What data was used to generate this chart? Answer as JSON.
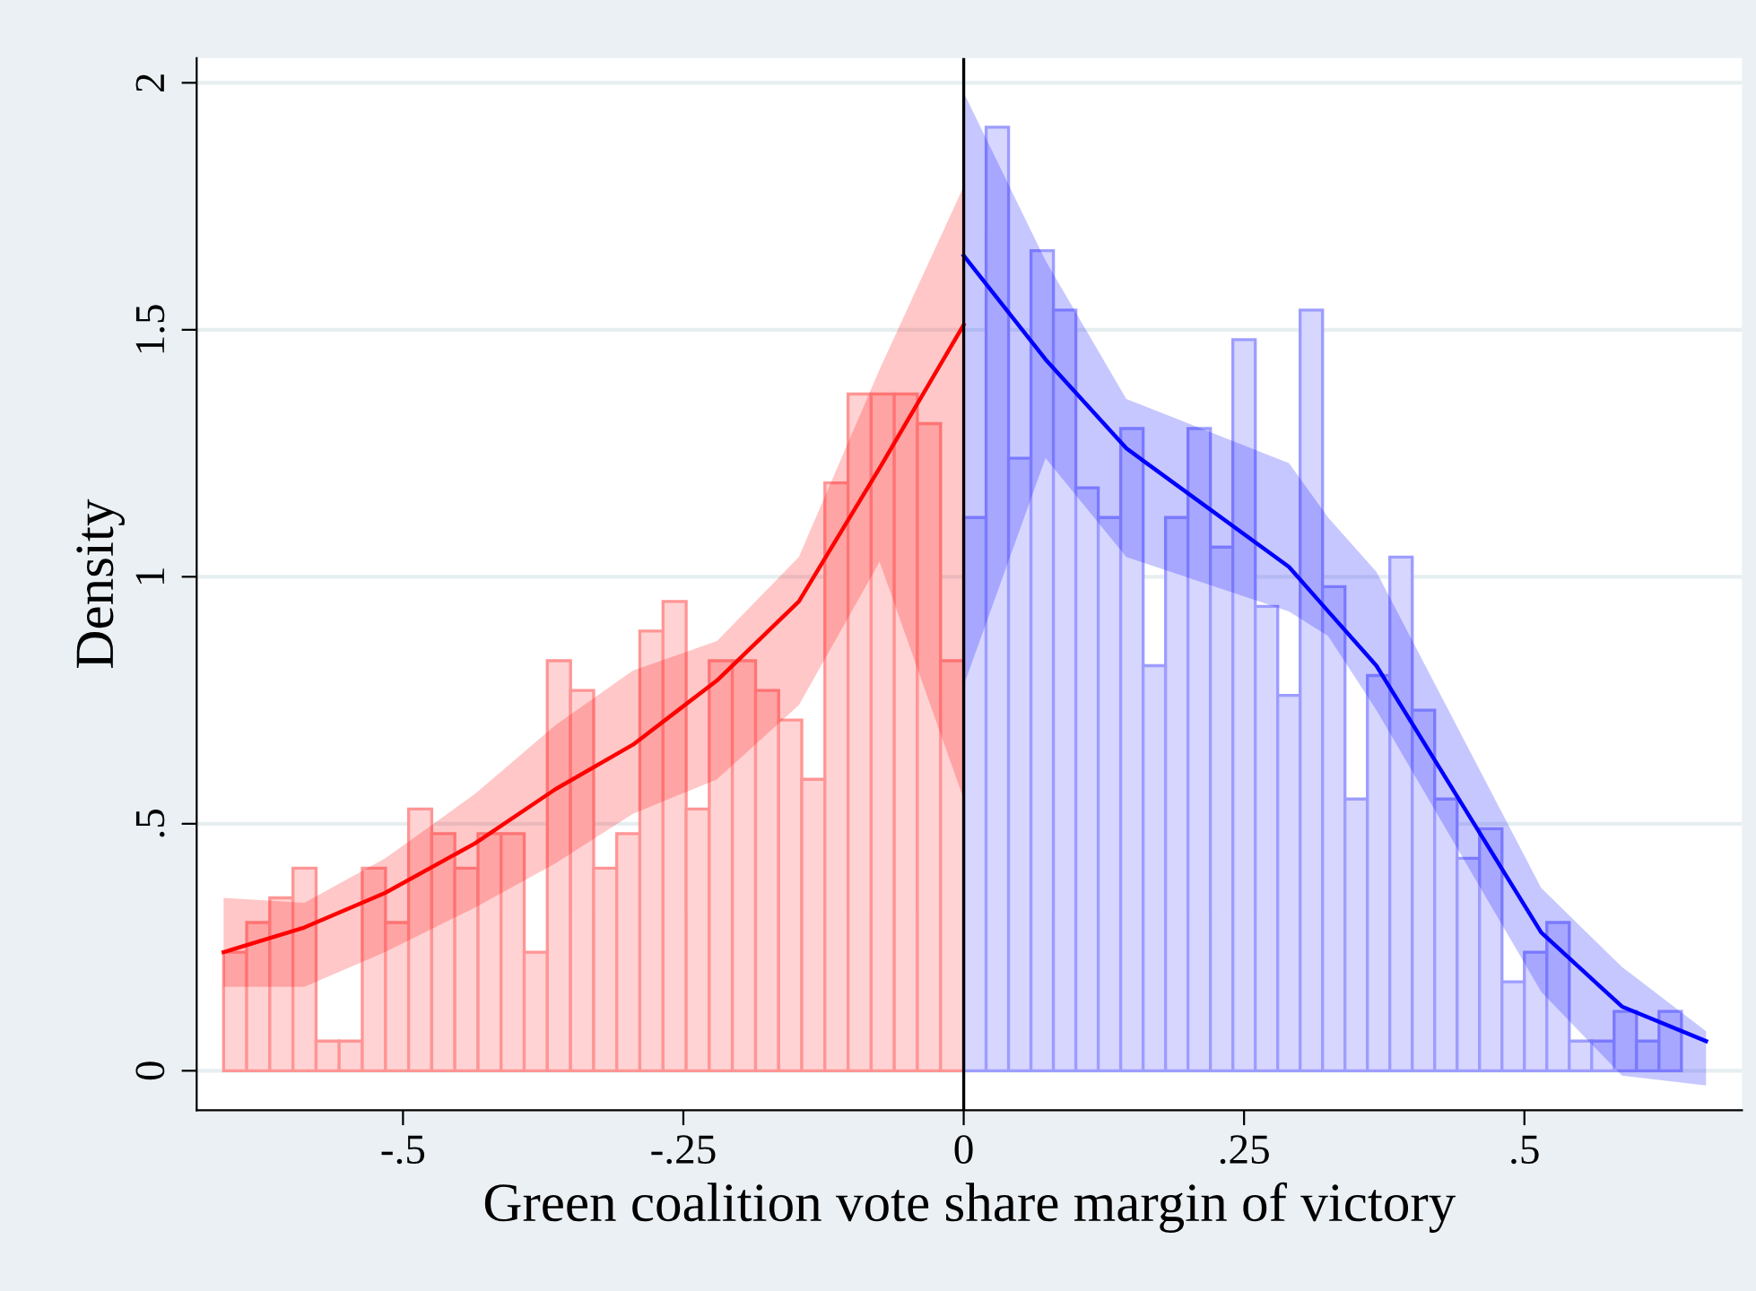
{
  "chart_data": {
    "type": "histogram",
    "xlabel": "Green coalition vote share margin of victory",
    "ylabel": "Density",
    "xlim": [
      -0.684,
      0.694
    ],
    "ylim": [
      -0.08,
      2.05
    ],
    "xticks": [
      {
        "value": -0.5,
        "label": "-.5"
      },
      {
        "value": -0.25,
        "label": "-.25"
      },
      {
        "value": 0,
        "label": "0"
      },
      {
        "value": 0.25,
        "label": ".25"
      },
      {
        "value": 0.5,
        "label": ".5"
      }
    ],
    "yticks": [
      {
        "value": 0,
        "label": "0"
      },
      {
        "value": 0.5,
        "label": ".5"
      },
      {
        "value": 1,
        "label": "1"
      },
      {
        "value": 1.5,
        "label": "1.5"
      },
      {
        "value": 2,
        "label": "2"
      }
    ],
    "grid": "y",
    "ref_lines": [
      {
        "axis": "x",
        "value": 0,
        "color": "#000000"
      }
    ],
    "series": [
      {
        "type": "histogram",
        "color": "#ffd3d3",
        "bins": [
          -0.66,
          -0.6394,
          -0.6188,
          -0.5981,
          -0.5775,
          -0.5569,
          -0.5363,
          -0.5156,
          -0.495,
          -0.4744,
          -0.4538,
          -0.4331,
          -0.4125,
          -0.3919,
          -0.3713,
          -0.3506,
          -0.33,
          -0.3094,
          -0.2888,
          -0.2681,
          -0.2475,
          -0.2269,
          -0.2063,
          -0.1856,
          -0.165,
          -0.1444,
          -0.1238,
          -0.1031,
          -0.0825,
          -0.0619,
          -0.0413,
          -0.0206,
          0
        ],
        "values": [
          0.24,
          0.3,
          0.35,
          0.41,
          0.06,
          0.06,
          0.41,
          0.3,
          0.53,
          0.48,
          0.41,
          0.48,
          0.48,
          0.24,
          0.83,
          0.77,
          0.41,
          0.48,
          0.89,
          0.95,
          0.53,
          0.83,
          0.83,
          0.77,
          0.71,
          0.59,
          1.19,
          1.37,
          1.37,
          1.37,
          1.31,
          0.83
        ]
      },
      {
        "type": "histogram",
        "color": "#d6d6ff",
        "bins": [
          0,
          0.02,
          0.04,
          0.06,
          0.08,
          0.1,
          0.12,
          0.14,
          0.16,
          0.18,
          0.2,
          0.22,
          0.24,
          0.26,
          0.28,
          0.3,
          0.32,
          0.34,
          0.36,
          0.38,
          0.4,
          0.42,
          0.44,
          0.46,
          0.48,
          0.5,
          0.52,
          0.54,
          0.56,
          0.58,
          0.6,
          0.62,
          0.64
        ],
        "values": [
          1.12,
          1.91,
          1.24,
          1.66,
          1.54,
          1.18,
          1.12,
          1.3,
          0.82,
          1.12,
          1.3,
          1.06,
          1.48,
          0.94,
          0.76,
          1.54,
          0.98,
          0.55,
          0.8,
          1.04,
          0.73,
          0.55,
          0.43,
          0.49,
          0.18,
          0.24,
          0.3,
          0.06,
          0.06,
          0.12,
          0.06,
          0.12
        ]
      },
      {
        "type": "line",
        "color": "#ff0000",
        "x": [
          -0.66,
          -0.588,
          -0.516,
          -0.436,
          -0.364,
          -0.295,
          -0.22,
          -0.147,
          -0.075,
          0
        ],
        "values": [
          0.24,
          0.29,
          0.36,
          0.46,
          0.57,
          0.66,
          0.79,
          0.95,
          1.22,
          1.51
        ],
        "lower": [
          0.17,
          0.17,
          0.24,
          0.33,
          0.42,
          0.52,
          0.59,
          0.74,
          1.03,
          0.55
        ],
        "upper": [
          0.35,
          0.34,
          0.43,
          0.56,
          0.7,
          0.81,
          0.87,
          1.04,
          1.42,
          1.79
        ]
      },
      {
        "type": "line",
        "color": "#0000ff",
        "x": [
          0,
          0.073,
          0.145,
          0.29,
          0.325,
          0.368,
          0.515,
          0.587,
          0.662
        ],
        "values": [
          1.65,
          1.44,
          1.26,
          1.02,
          0.93,
          0.82,
          0.28,
          0.13,
          0.06
        ],
        "lower": [
          0.78,
          1.24,
          1.04,
          0.93,
          0.88,
          0.73,
          0.16,
          -0.01,
          -0.03
        ],
        "upper": [
          1.98,
          1.64,
          1.36,
          1.23,
          1.12,
          1.01,
          0.37,
          0.21,
          0.08
        ]
      }
    ]
  }
}
